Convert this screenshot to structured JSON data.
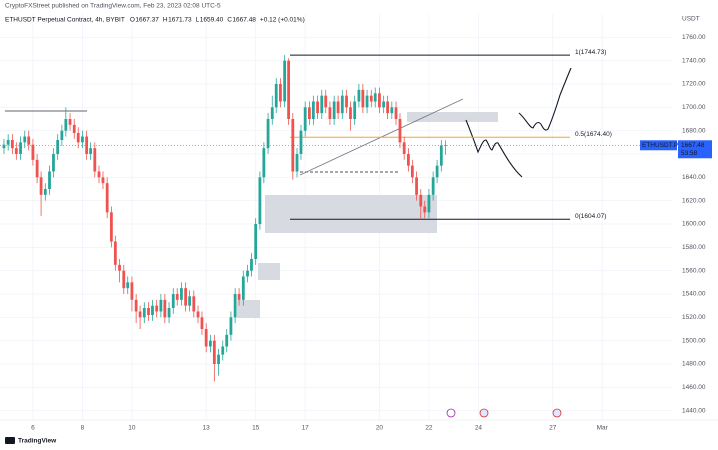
{
  "header": {
    "publisher": "CryptoFXStreet published on TradingView.com, Feb 23, 2023 02:08 UTC-5",
    "symbol": "ETHUSDT Perpetual Contract, 4h, BYBIT",
    "ohlc": [
      {
        "key": "O",
        "value": "1667.37"
      },
      {
        "key": "H",
        "value": "1671.73"
      },
      {
        "key": "L",
        "value": "1659.40"
      },
      {
        "key": "C",
        "value": "1667.48"
      }
    ],
    "change": "+0.12 (+0.01%)"
  },
  "chart_data": {
    "type": "candlestick",
    "y_axis_label": "USDT",
    "up_color": "#26a69a",
    "down_color": "#ef5350",
    "grid": true,
    "x": [
      4.83,
      5,
      5.17,
      5.33,
      5.5,
      5.67,
      5.83,
      6,
      6.17,
      6.33,
      6.5,
      6.67,
      6.83,
      7,
      7.17,
      7.33,
      7.5,
      7.67,
      7.83,
      8,
      8.17,
      8.33,
      8.5,
      8.67,
      8.83,
      9,
      9.17,
      9.33,
      9.5,
      9.67,
      9.83,
      10,
      10.17,
      10.33,
      10.5,
      10.67,
      10.83,
      11,
      11.17,
      11.33,
      11.5,
      11.67,
      11.83,
      12,
      12.17,
      12.33,
      12.5,
      12.67,
      12.83,
      13,
      13.17,
      13.33,
      13.5,
      13.67,
      13.83,
      14,
      14.17,
      14.33,
      14.5,
      14.67,
      14.83,
      15,
      15.17,
      15.33,
      15.5,
      15.67,
      15.83,
      16,
      16.17,
      16.33,
      16.5,
      16.67,
      16.83,
      17,
      17.17,
      17.33,
      17.5,
      17.67,
      17.83,
      18,
      18.17,
      18.33,
      18.5,
      18.67,
      18.83,
      19,
      19.17,
      19.33,
      19.5,
      19.67,
      19.83,
      20,
      20.17,
      20.33,
      20.5,
      20.67,
      20.83,
      21,
      21.17,
      21.33,
      21.5,
      21.67,
      21.83,
      22,
      22.17,
      22.33,
      22.5,
      22.67
    ],
    "open": [
      1665,
      1668,
      1672,
      1665,
      1660,
      1670,
      1675,
      1668,
      1655,
      1640,
      1625,
      1630,
      1645,
      1660,
      1672,
      1680,
      1690,
      1685,
      1678,
      1670,
      1675,
      1660,
      1665,
      1645,
      1640,
      1635,
      1610,
      1585,
      1565,
      1560,
      1545,
      1550,
      1535,
      1525,
      1520,
      1528,
      1522,
      1530,
      1525,
      1535,
      1520,
      1528,
      1540,
      1535,
      1545,
      1530,
      1538,
      1525,
      1520,
      1510,
      1495,
      1500,
      1480,
      1488,
      1495,
      1505,
      1520,
      1540,
      1535,
      1555,
      1560,
      1570,
      1600,
      1640,
      1665,
      1690,
      1700,
      1720,
      1705,
      1740,
      1690,
      1645,
      1660,
      1680,
      1700,
      1690,
      1705,
      1695,
      1710,
      1700,
      1690,
      1705,
      1695,
      1710,
      1700,
      1690,
      1705,
      1715,
      1700,
      1710,
      1705,
      1712,
      1700,
      1705,
      1695,
      1700,
      1690,
      1670,
      1660,
      1650,
      1640,
      1625,
      1615,
      1610,
      1625,
      1640,
      1650,
      1667.37
    ],
    "high": [
      1673,
      1677,
      1677,
      1670,
      1675,
      1680,
      1680,
      1673,
      1660,
      1645,
      1635,
      1650,
      1665,
      1677,
      1685,
      1700,
      1695,
      1690,
      1683,
      1680,
      1680,
      1670,
      1670,
      1650,
      1645,
      1640,
      1615,
      1590,
      1570,
      1565,
      1555,
      1555,
      1540,
      1530,
      1533,
      1533,
      1535,
      1535,
      1540,
      1540,
      1533,
      1545,
      1545,
      1550,
      1550,
      1543,
      1543,
      1530,
      1525,
      1515,
      1505,
      1505,
      1493,
      1500,
      1510,
      1525,
      1545,
      1545,
      1560,
      1565,
      1575,
      1605,
      1645,
      1670,
      1695,
      1710,
      1725,
      1725,
      1744.73,
      1742,
      1695,
      1665,
      1685,
      1705,
      1705,
      1710,
      1710,
      1715,
      1715,
      1705,
      1710,
      1710,
      1715,
      1715,
      1705,
      1710,
      1720,
      1720,
      1715,
      1715,
      1717,
      1717,
      1710,
      1710,
      1705,
      1705,
      1695,
      1675,
      1665,
      1655,
      1645,
      1630,
      1620,
      1630,
      1645,
      1655,
      1672,
      1671.73
    ],
    "low": [
      1660,
      1663,
      1660,
      1655,
      1655,
      1665,
      1663,
      1650,
      1635,
      1607,
      1620,
      1625,
      1640,
      1655,
      1667,
      1675,
      1680,
      1673,
      1665,
      1665,
      1655,
      1655,
      1640,
      1635,
      1630,
      1605,
      1580,
      1560,
      1550,
      1540,
      1540,
      1525,
      1515,
      1510,
      1515,
      1517,
      1517,
      1520,
      1520,
      1515,
      1515,
      1523,
      1530,
      1530,
      1525,
      1525,
      1520,
      1515,
      1505,
      1490,
      1490,
      1465,
      1470,
      1483,
      1490,
      1500,
      1515,
      1530,
      1530,
      1550,
      1555,
      1565,
      1595,
      1635,
      1660,
      1685,
      1695,
      1700,
      1700,
      1685,
      1638,
      1640,
      1655,
      1675,
      1685,
      1685,
      1690,
      1690,
      1695,
      1685,
      1685,
      1690,
      1690,
      1695,
      1680,
      1685,
      1700,
      1695,
      1695,
      1700,
      1700,
      1695,
      1695,
      1690,
      1690,
      1685,
      1665,
      1655,
      1645,
      1635,
      1620,
      1604.07,
      1605,
      1605,
      1620,
      1635,
      1645,
      1659.4
    ],
    "close": [
      1668,
      1672,
      1665,
      1660,
      1670,
      1675,
      1668,
      1655,
      1640,
      1625,
      1630,
      1645,
      1660,
      1672,
      1680,
      1690,
      1685,
      1678,
      1670,
      1675,
      1660,
      1665,
      1645,
      1640,
      1635,
      1610,
      1585,
      1565,
      1560,
      1545,
      1550,
      1535,
      1525,
      1520,
      1528,
      1522,
      1530,
      1525,
      1535,
      1520,
      1528,
      1540,
      1535,
      1545,
      1530,
      1538,
      1525,
      1520,
      1510,
      1495,
      1500,
      1480,
      1488,
      1495,
      1505,
      1520,
      1540,
      1535,
      1555,
      1560,
      1570,
      1600,
      1640,
      1665,
      1690,
      1700,
      1720,
      1705,
      1740,
      1690,
      1645,
      1660,
      1680,
      1700,
      1690,
      1705,
      1695,
      1710,
      1700,
      1690,
      1705,
      1695,
      1710,
      1700,
      1690,
      1705,
      1715,
      1700,
      1710,
      1705,
      1712,
      1700,
      1705,
      1695,
      1700,
      1690,
      1670,
      1660,
      1650,
      1640,
      1625,
      1615,
      1610,
      1625,
      1640,
      1650,
      1667.37,
      1667.48
    ],
    "xlim": [
      4.67,
      31.82
    ],
    "xticks": [
      {
        "value": 6,
        "label": "6"
      },
      {
        "value": 8,
        "label": "8"
      },
      {
        "value": 10,
        "label": "10"
      },
      {
        "value": 13,
        "label": "13"
      },
      {
        "value": 15,
        "label": "15"
      },
      {
        "value": 17,
        "label": "17"
      },
      {
        "value": 20,
        "label": "20"
      },
      {
        "value": 22,
        "label": "22"
      },
      {
        "value": 24,
        "label": "24"
      },
      {
        "value": 27,
        "label": "27"
      },
      {
        "value": 29,
        "label": "Mar"
      }
    ],
    "ylim": [
      1432,
      1780
    ],
    "yticks": [
      {
        "value": 1440,
        "label": "1440.00"
      },
      {
        "value": 1460,
        "label": "1460.00"
      },
      {
        "value": 1480,
        "label": "1480.00"
      },
      {
        "value": 1500,
        "label": "1500.00"
      },
      {
        "value": 1520,
        "label": "1520.00"
      },
      {
        "value": 1540,
        "label": "1540.00"
      },
      {
        "value": 1560,
        "label": "1560.00"
      },
      {
        "value": 1580,
        "label": "1580.00"
      },
      {
        "value": 1600,
        "label": "1600.00"
      },
      {
        "value": 1620,
        "label": "1620.00"
      },
      {
        "value": 1640,
        "label": "1640.00"
      },
      {
        "value": 1660,
        "label": "1660.00"
      },
      {
        "value": 1680,
        "label": "1680.00"
      },
      {
        "value": 1700,
        "label": "1700.00"
      },
      {
        "value": 1720,
        "label": "1720.00"
      },
      {
        "value": 1740,
        "label": "1740.00"
      },
      {
        "value": 1760,
        "label": "1760.00"
      }
    ],
    "levels": [
      {
        "label": "1(1744.73)",
        "value": 1744.73,
        "color": "#131722"
      },
      {
        "label": "0.5(1674.40)",
        "value": 1674.4,
        "color": "#f5a623"
      },
      {
        "label": "0(1604.07)",
        "value": 1604.07,
        "color": "#131722"
      }
    ],
    "last_price": {
      "symbol": "ETHUSDT.P",
      "value": 1667.48,
      "countdown": "53:58",
      "color": "#2962ff"
    }
  },
  "footer": {
    "brand": "TradingView"
  }
}
